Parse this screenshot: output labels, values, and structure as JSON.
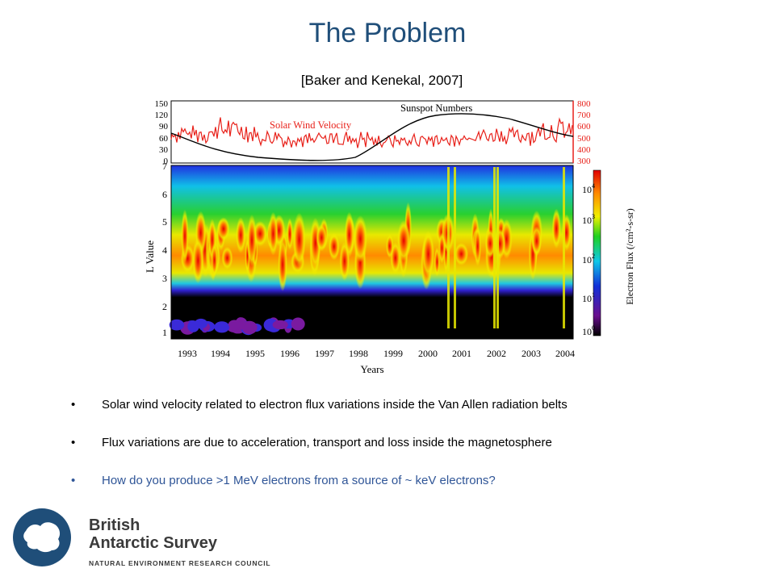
{
  "slide": {
    "title": "The Problem",
    "citation": "[Baker and Kenekal, 2007]"
  },
  "figure": {
    "top_panel": {
      "left_ticks": [
        "150",
        "120",
        "90",
        "60",
        "30",
        "0"
      ],
      "right_ticks": [
        "800",
        "700",
        "600",
        "500",
        "400",
        "300"
      ],
      "series_labels": {
        "sunspot": "Sunspot Numbers",
        "solar_wind": "Solar Wind Velocity"
      },
      "colors": {
        "sunspot": "#000000",
        "solar_wind": "#e8211a"
      }
    },
    "main_panel": {
      "y_axis_label": "L Value",
      "y_ticks": [
        "7",
        "6",
        "5",
        "4",
        "3",
        "2",
        "1"
      ],
      "x_ticks": [
        "1993",
        "1994",
        "1995",
        "1996",
        "1997",
        "1998",
        "1999",
        "2000",
        "2001",
        "2002",
        "2003",
        "2004"
      ],
      "x_axis_label": "Years"
    },
    "colorbar": {
      "label": "Electron Flux (/cm²-s-sr)",
      "ticks": [
        {
          "base": "10",
          "exp": "4"
        },
        {
          "base": "10",
          "exp": "3"
        },
        {
          "base": "10",
          "exp": "2"
        },
        {
          "base": "10",
          "exp": "1"
        },
        {
          "base": "10",
          "exp": "0"
        }
      ]
    }
  },
  "bullets": [
    {
      "marker": "•",
      "text": "Solar wind velocity related to electron flux variations inside the Van Allen radiation belts"
    },
    {
      "marker": "•",
      "text": "Flux variations are due to acceleration, transport and loss inside the magnetosphere"
    },
    {
      "marker": "•",
      "text": "How do you produce >1 MeV electrons from a source of ~ keV electrons?"
    }
  ],
  "logo": {
    "line1": "British",
    "line2": "Antarctic Survey",
    "line3": "NATURAL ENVIRONMENT RESEARCH COUNCIL",
    "colors": {
      "circle": "#1f4e79",
      "text": "#3a3a3a"
    }
  }
}
